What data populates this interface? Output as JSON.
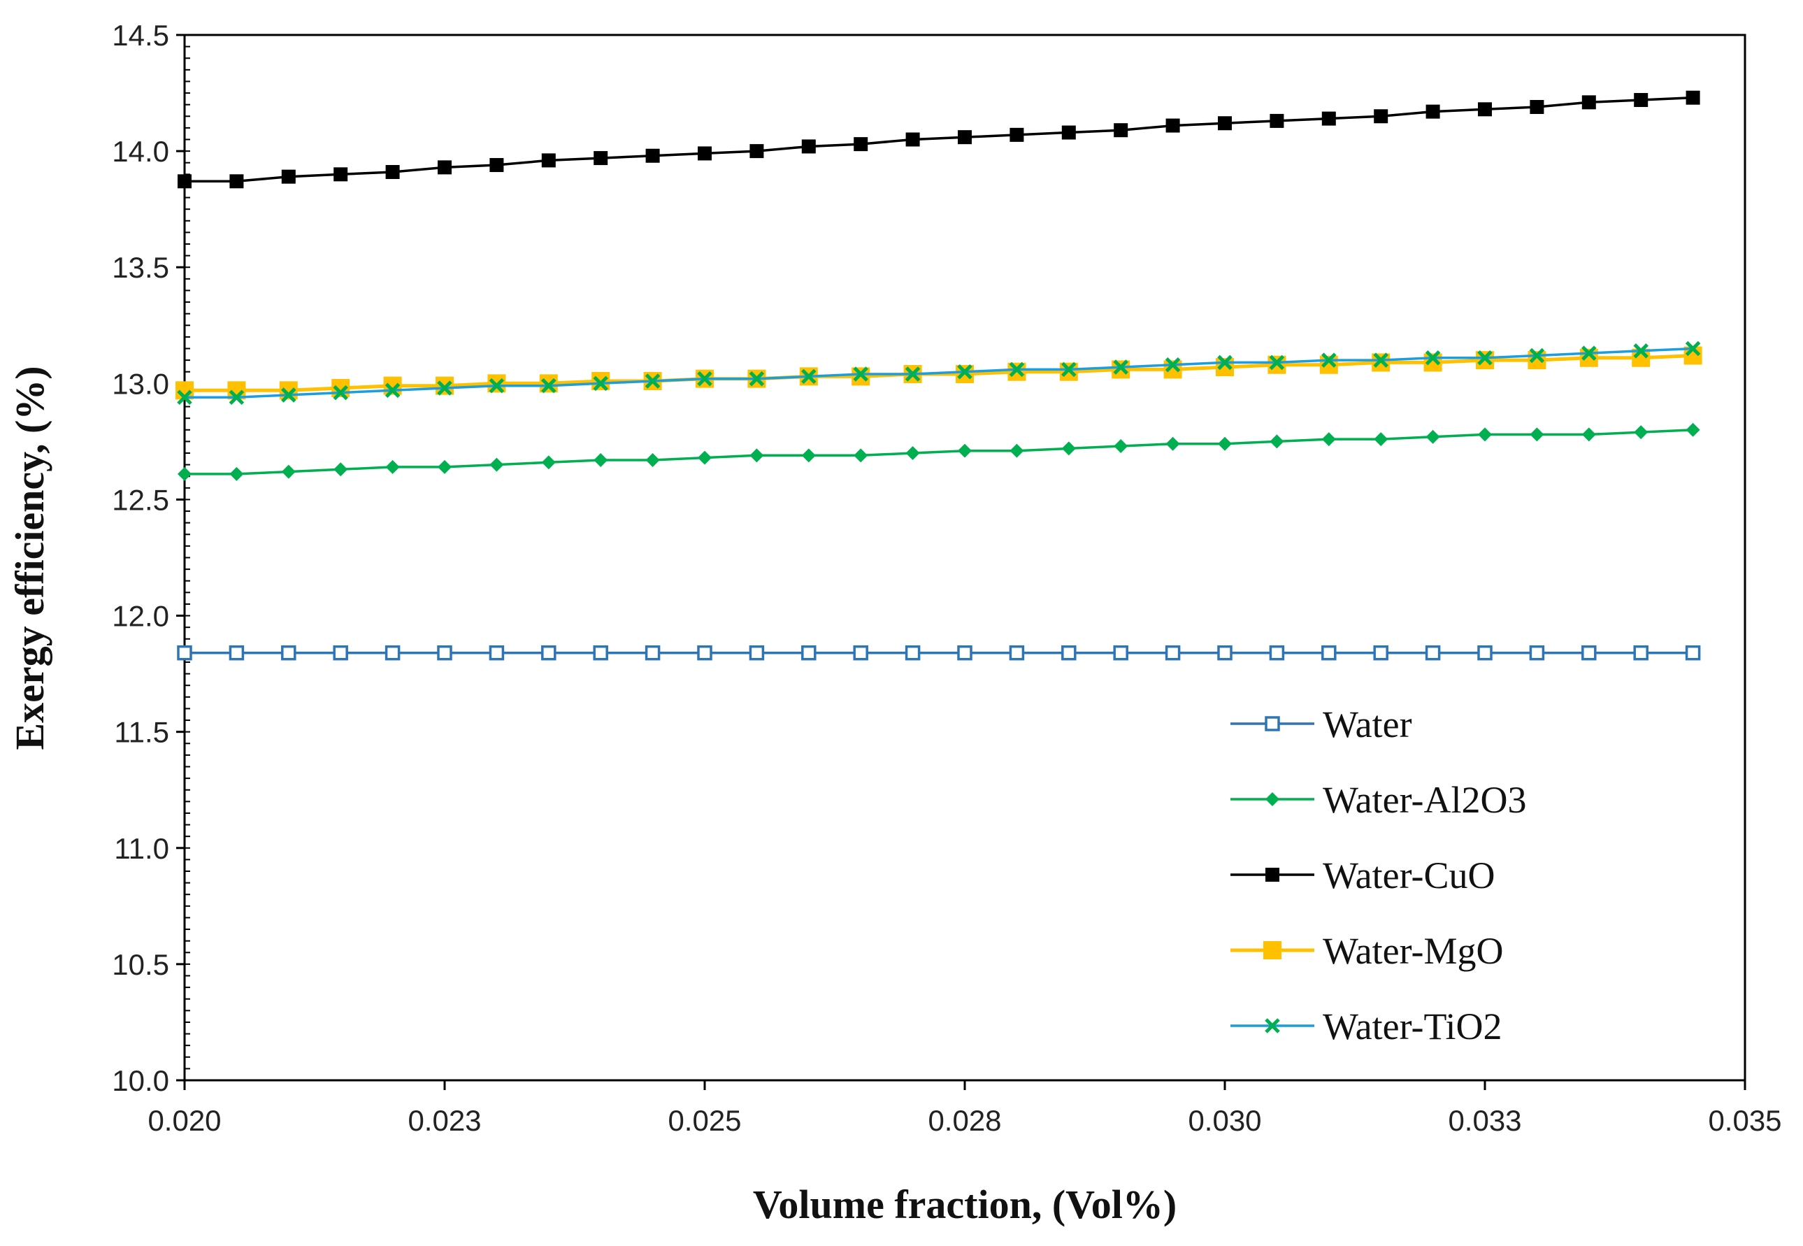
{
  "chart_data": {
    "type": "line",
    "title": "",
    "xlabel": "Volume fraction, (Vol%)",
    "ylabel": "Exergy efficiency, (%)",
    "xlim": [
      0.02,
      0.035
    ],
    "ylim": [
      10.0,
      14.5
    ],
    "x_ticks": [
      "0.020",
      "0.023",
      "0.025",
      "0.028",
      "0.030",
      "0.033",
      "0.035"
    ],
    "y_ticks": [
      "10.0",
      "10.5",
      "11.0",
      "11.5",
      "12.0",
      "12.5",
      "13.0",
      "13.5",
      "14.0",
      "14.5"
    ],
    "x": [
      0.02,
      0.0205,
      0.021,
      0.0215,
      0.022,
      0.0225,
      0.023,
      0.0235,
      0.024,
      0.0245,
      0.025,
      0.0255,
      0.026,
      0.0265,
      0.027,
      0.0275,
      0.028,
      0.0285,
      0.029,
      0.0295,
      0.03,
      0.0305,
      0.031,
      0.0315,
      0.032,
      0.0325,
      0.033,
      0.0335,
      0.034,
      0.0345
    ],
    "series": [
      {
        "name": "Water",
        "color": "#2e75b6",
        "marker": "open-square",
        "values": [
          11.84,
          11.84,
          11.84,
          11.84,
          11.84,
          11.84,
          11.84,
          11.84,
          11.84,
          11.84,
          11.84,
          11.84,
          11.84,
          11.84,
          11.84,
          11.84,
          11.84,
          11.84,
          11.84,
          11.84,
          11.84,
          11.84,
          11.84,
          11.84,
          11.84,
          11.84,
          11.84,
          11.84,
          11.84,
          11.84
        ]
      },
      {
        "name": "Water-Al2O3",
        "color": "#00b050",
        "marker": "diamond",
        "values": [
          12.61,
          12.61,
          12.62,
          12.63,
          12.64,
          12.64,
          12.65,
          12.66,
          12.67,
          12.67,
          12.68,
          12.69,
          12.69,
          12.69,
          12.7,
          12.71,
          12.71,
          12.72,
          12.73,
          12.74,
          12.74,
          12.75,
          12.76,
          12.76,
          12.77,
          12.78,
          12.78,
          12.78,
          12.79,
          12.8
        ]
      },
      {
        "name": "Water-CuO",
        "color": "#000000",
        "marker": "square",
        "values": [
          13.87,
          13.87,
          13.89,
          13.9,
          13.91,
          13.93,
          13.94,
          13.96,
          13.97,
          13.98,
          13.99,
          14.0,
          14.02,
          14.03,
          14.05,
          14.06,
          14.07,
          14.08,
          14.09,
          14.11,
          14.12,
          14.13,
          14.14,
          14.15,
          14.17,
          14.18,
          14.19,
          14.21,
          14.22,
          14.23
        ]
      },
      {
        "name": "Water-MgO",
        "color": "#ffc000",
        "marker": "square",
        "values": [
          12.97,
          12.97,
          12.97,
          12.98,
          12.99,
          12.99,
          13.0,
          13.0,
          13.01,
          13.01,
          13.02,
          13.02,
          13.03,
          13.03,
          13.04,
          13.04,
          13.05,
          13.05,
          13.06,
          13.06,
          13.07,
          13.08,
          13.08,
          13.09,
          13.09,
          13.1,
          13.1,
          13.11,
          13.11,
          13.12
        ]
      },
      {
        "name": "Water-TiO2",
        "color": "#1b9ee0",
        "marker_color": "#00b050",
        "marker": "x",
        "values": [
          12.94,
          12.94,
          12.95,
          12.96,
          12.97,
          12.98,
          12.99,
          12.99,
          13.0,
          13.01,
          13.02,
          13.02,
          13.03,
          13.04,
          13.04,
          13.05,
          13.06,
          13.06,
          13.07,
          13.08,
          13.09,
          13.09,
          13.1,
          13.1,
          13.11,
          13.11,
          13.12,
          13.13,
          13.14,
          13.15
        ]
      }
    ],
    "legend_position": "bottom-right",
    "grid": false
  }
}
